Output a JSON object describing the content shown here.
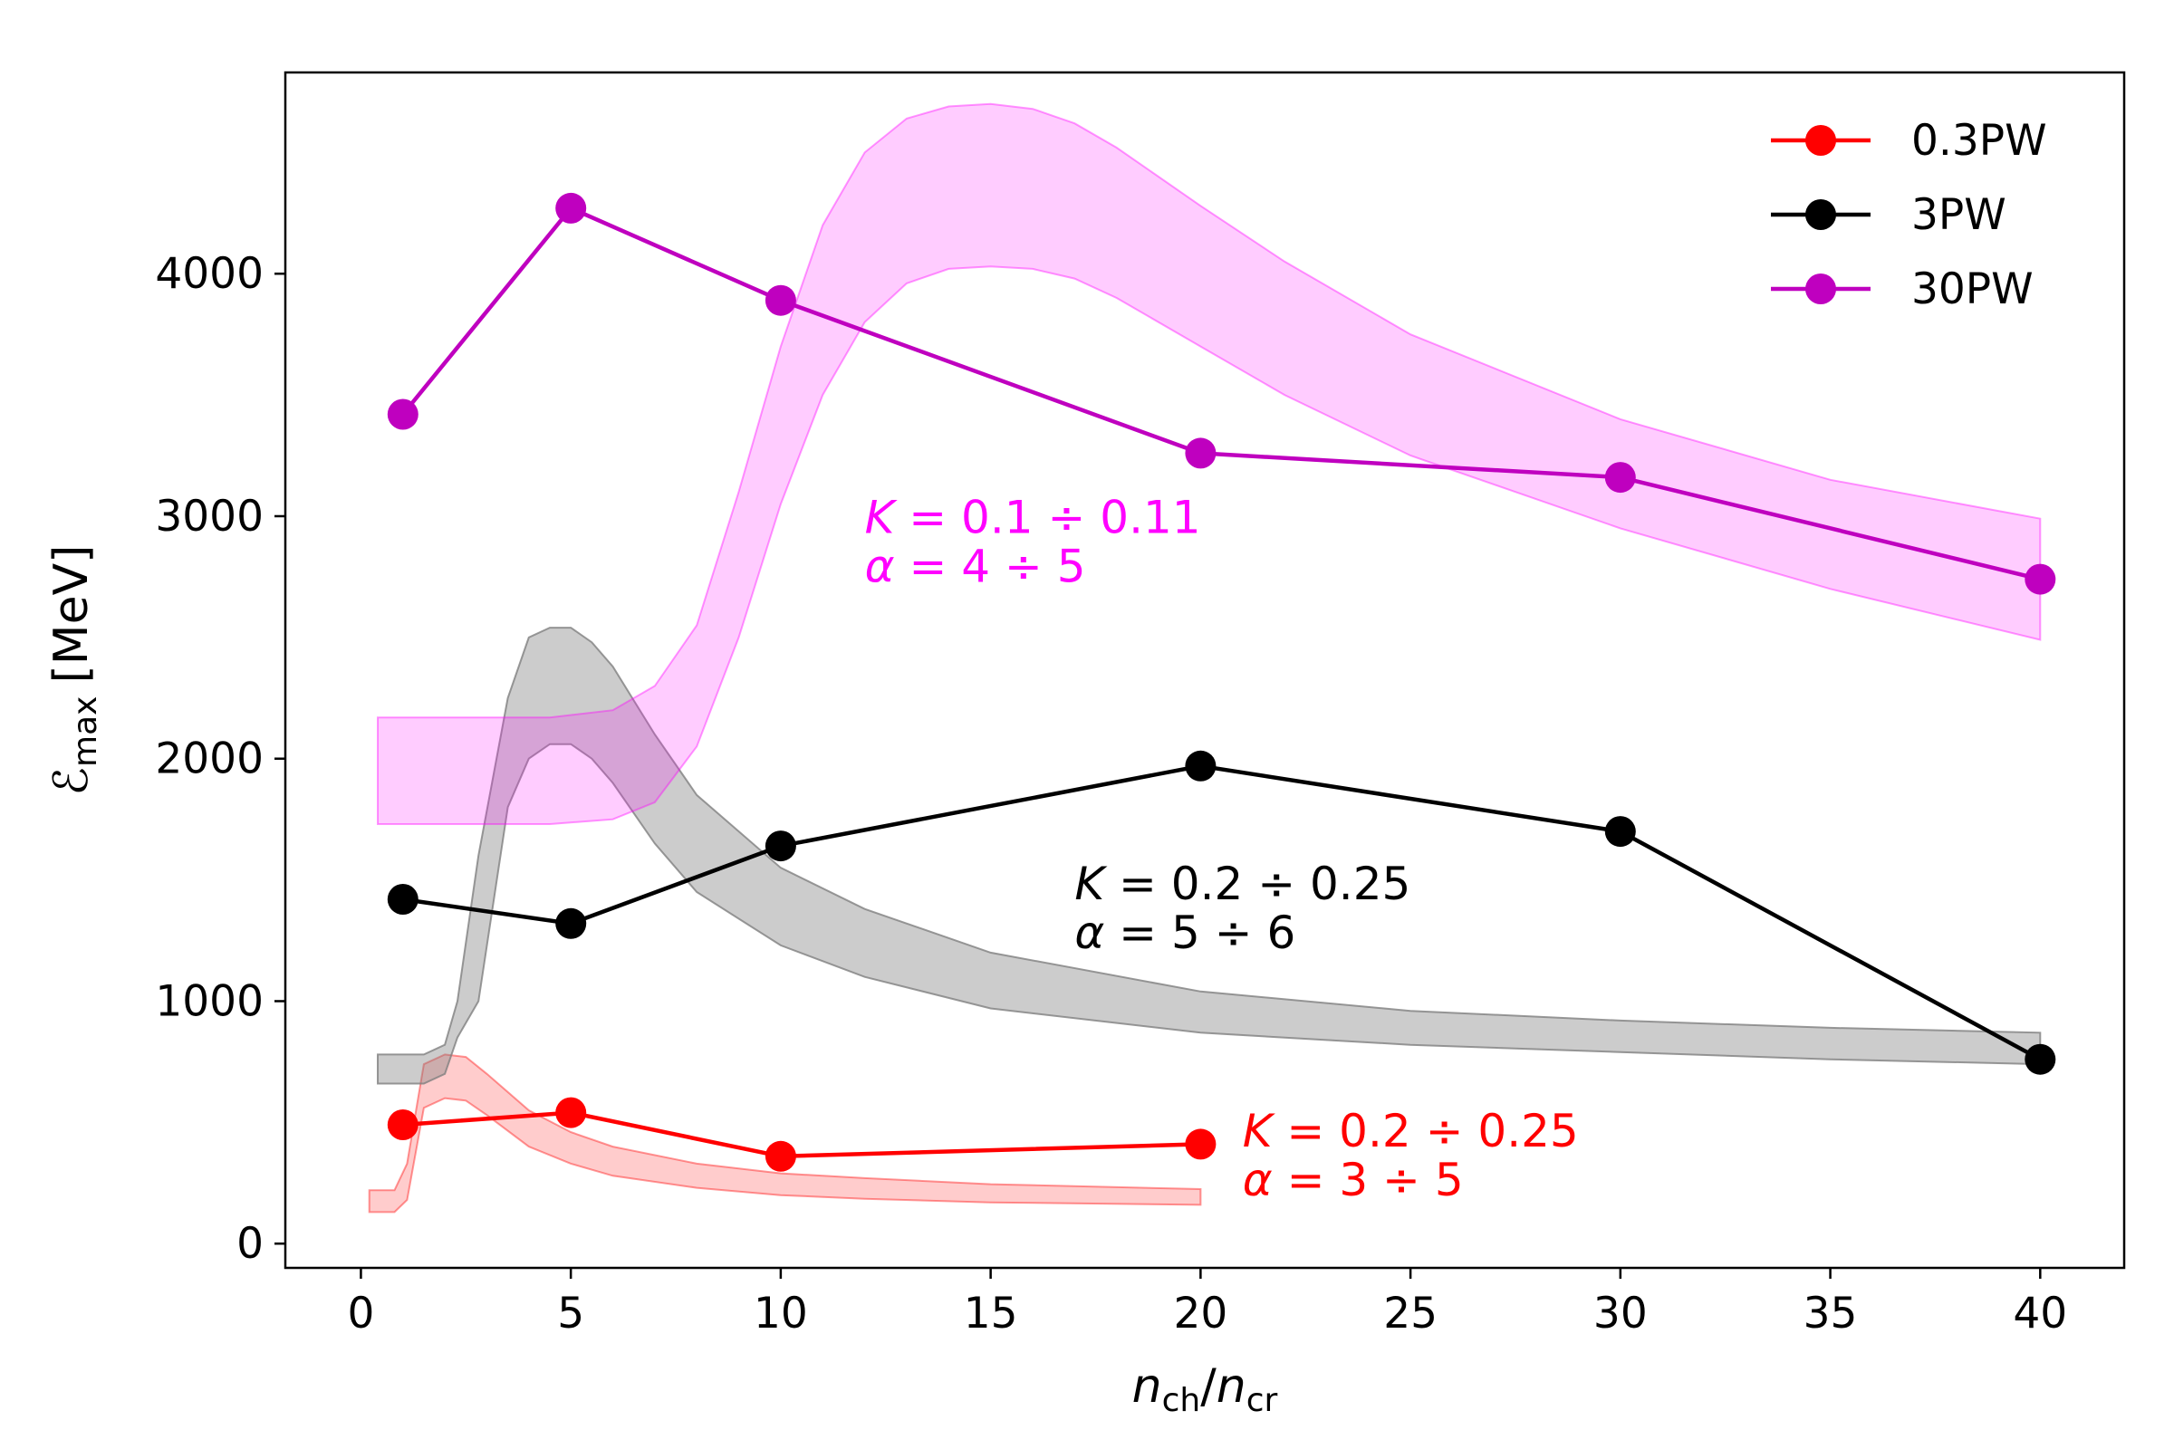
{
  "chart_data": {
    "type": "line",
    "title": "",
    "xlabel": {
      "main": "n",
      "sub": "ch",
      "sep": "/",
      "main2": "n",
      "sub2": "cr"
    },
    "ylabel": {
      "symbol": "ℰ",
      "sub": "max",
      "unit": "[MeV]"
    },
    "xlim": [
      -1.8,
      42.0
    ],
    "ylim": [
      -100,
      4830
    ],
    "xticks": [
      0,
      5,
      10,
      15,
      20,
      25,
      30,
      35,
      40
    ],
    "yticks": [
      0,
      1000,
      2000,
      3000,
      4000
    ],
    "legend_position": "top-right",
    "series": [
      {
        "name": "0.3PW",
        "color": "#ff0000",
        "x": [
          1,
          5,
          10,
          20
        ],
        "y": [
          490,
          540,
          360,
          410
        ]
      },
      {
        "name": "3PW",
        "color": "#000000",
        "x": [
          1,
          5,
          10,
          20,
          30,
          40
        ],
        "y": [
          1420,
          1320,
          1640,
          1970,
          1700,
          760
        ]
      },
      {
        "name": "30PW",
        "color": "#bf00bf",
        "x": [
          1,
          5,
          10,
          20,
          30,
          40
        ],
        "y": [
          3420,
          4270,
          3890,
          3260,
          3160,
          2740
        ]
      }
    ],
    "bands": [
      {
        "name": "0.3PW model band",
        "color": "#ff0000",
        "opacity": 0.2,
        "x": [
          0.2,
          0.8,
          1.1,
          1.5,
          2.0,
          2.5,
          3.0,
          4.0,
          5.0,
          6.0,
          8.0,
          10.0,
          12.0,
          15.0,
          20.0
        ],
        "lower": [
          130,
          130,
          180,
          560,
          600,
          590,
          530,
          400,
          330,
          280,
          230,
          200,
          185,
          170,
          160
        ],
        "upper": [
          220,
          220,
          330,
          740,
          780,
          770,
          700,
          550,
          460,
          400,
          330,
          290,
          270,
          245,
          225
        ]
      },
      {
        "name": "3PW model band",
        "color": "#808080",
        "opacity": 0.4,
        "x": [
          0.4,
          1.5,
          2.0,
          2.3,
          2.8,
          3.5,
          4.0,
          4.5,
          5.0,
          5.5,
          6.0,
          7.0,
          8.0,
          10.0,
          12.0,
          15.0,
          20.0,
          25.0,
          30.0,
          35.0,
          40.0
        ],
        "lower": [
          660,
          660,
          700,
          850,
          1000,
          1800,
          2000,
          2060,
          2060,
          2000,
          1900,
          1650,
          1450,
          1230,
          1100,
          970,
          870,
          820,
          790,
          760,
          740
        ],
        "upper": [
          780,
          780,
          820,
          1000,
          1600,
          2250,
          2500,
          2540,
          2540,
          2480,
          2380,
          2100,
          1850,
          1550,
          1380,
          1200,
          1040,
          960,
          920,
          890,
          870
        ]
      },
      {
        "name": "30PW model band",
        "color": "#ff00ff",
        "opacity": 0.2,
        "x": [
          0.4,
          1.5,
          3.0,
          4.5,
          6.0,
          7.0,
          8.0,
          9.0,
          10.0,
          11.0,
          12.0,
          13.0,
          14.0,
          15.0,
          16.0,
          17.0,
          18.0,
          20.0,
          22.0,
          25.0,
          30.0,
          35.0,
          40.0
        ],
        "lower": [
          1730,
          1730,
          1730,
          1730,
          1750,
          1820,
          2050,
          2500,
          3050,
          3500,
          3800,
          3960,
          4020,
          4030,
          4020,
          3980,
          3900,
          3700,
          3500,
          3250,
          2950,
          2700,
          2490
        ],
        "upper": [
          2170,
          2170,
          2170,
          2170,
          2200,
          2300,
          2550,
          3100,
          3700,
          4200,
          4500,
          4640,
          4690,
          4700,
          4680,
          4620,
          4520,
          4280,
          4050,
          3750,
          3400,
          3150,
          2990
        ]
      }
    ],
    "annotations": [
      {
        "color": "#ff00ff",
        "x": 12.0,
        "y": 2930,
        "line1_var": "K",
        "line1_val": " = 0.1 ÷ 0.11",
        "line2_var": "α",
        "line2_val": " = 4 ÷ 5"
      },
      {
        "color": "#000000",
        "x": 17.0,
        "y": 1420,
        "line1_var": "K",
        "line1_val": " = 0.2 ÷ 0.25",
        "line2_var": "α",
        "line2_val": " = 5 ÷ 6"
      },
      {
        "color": "#ff0000",
        "x": 21.0,
        "y": 400,
        "line1_var": "K",
        "line1_val": " = 0.2 ÷ 0.25",
        "line2_var": "α",
        "line2_val": " = 3 ÷ 5"
      }
    ]
  }
}
